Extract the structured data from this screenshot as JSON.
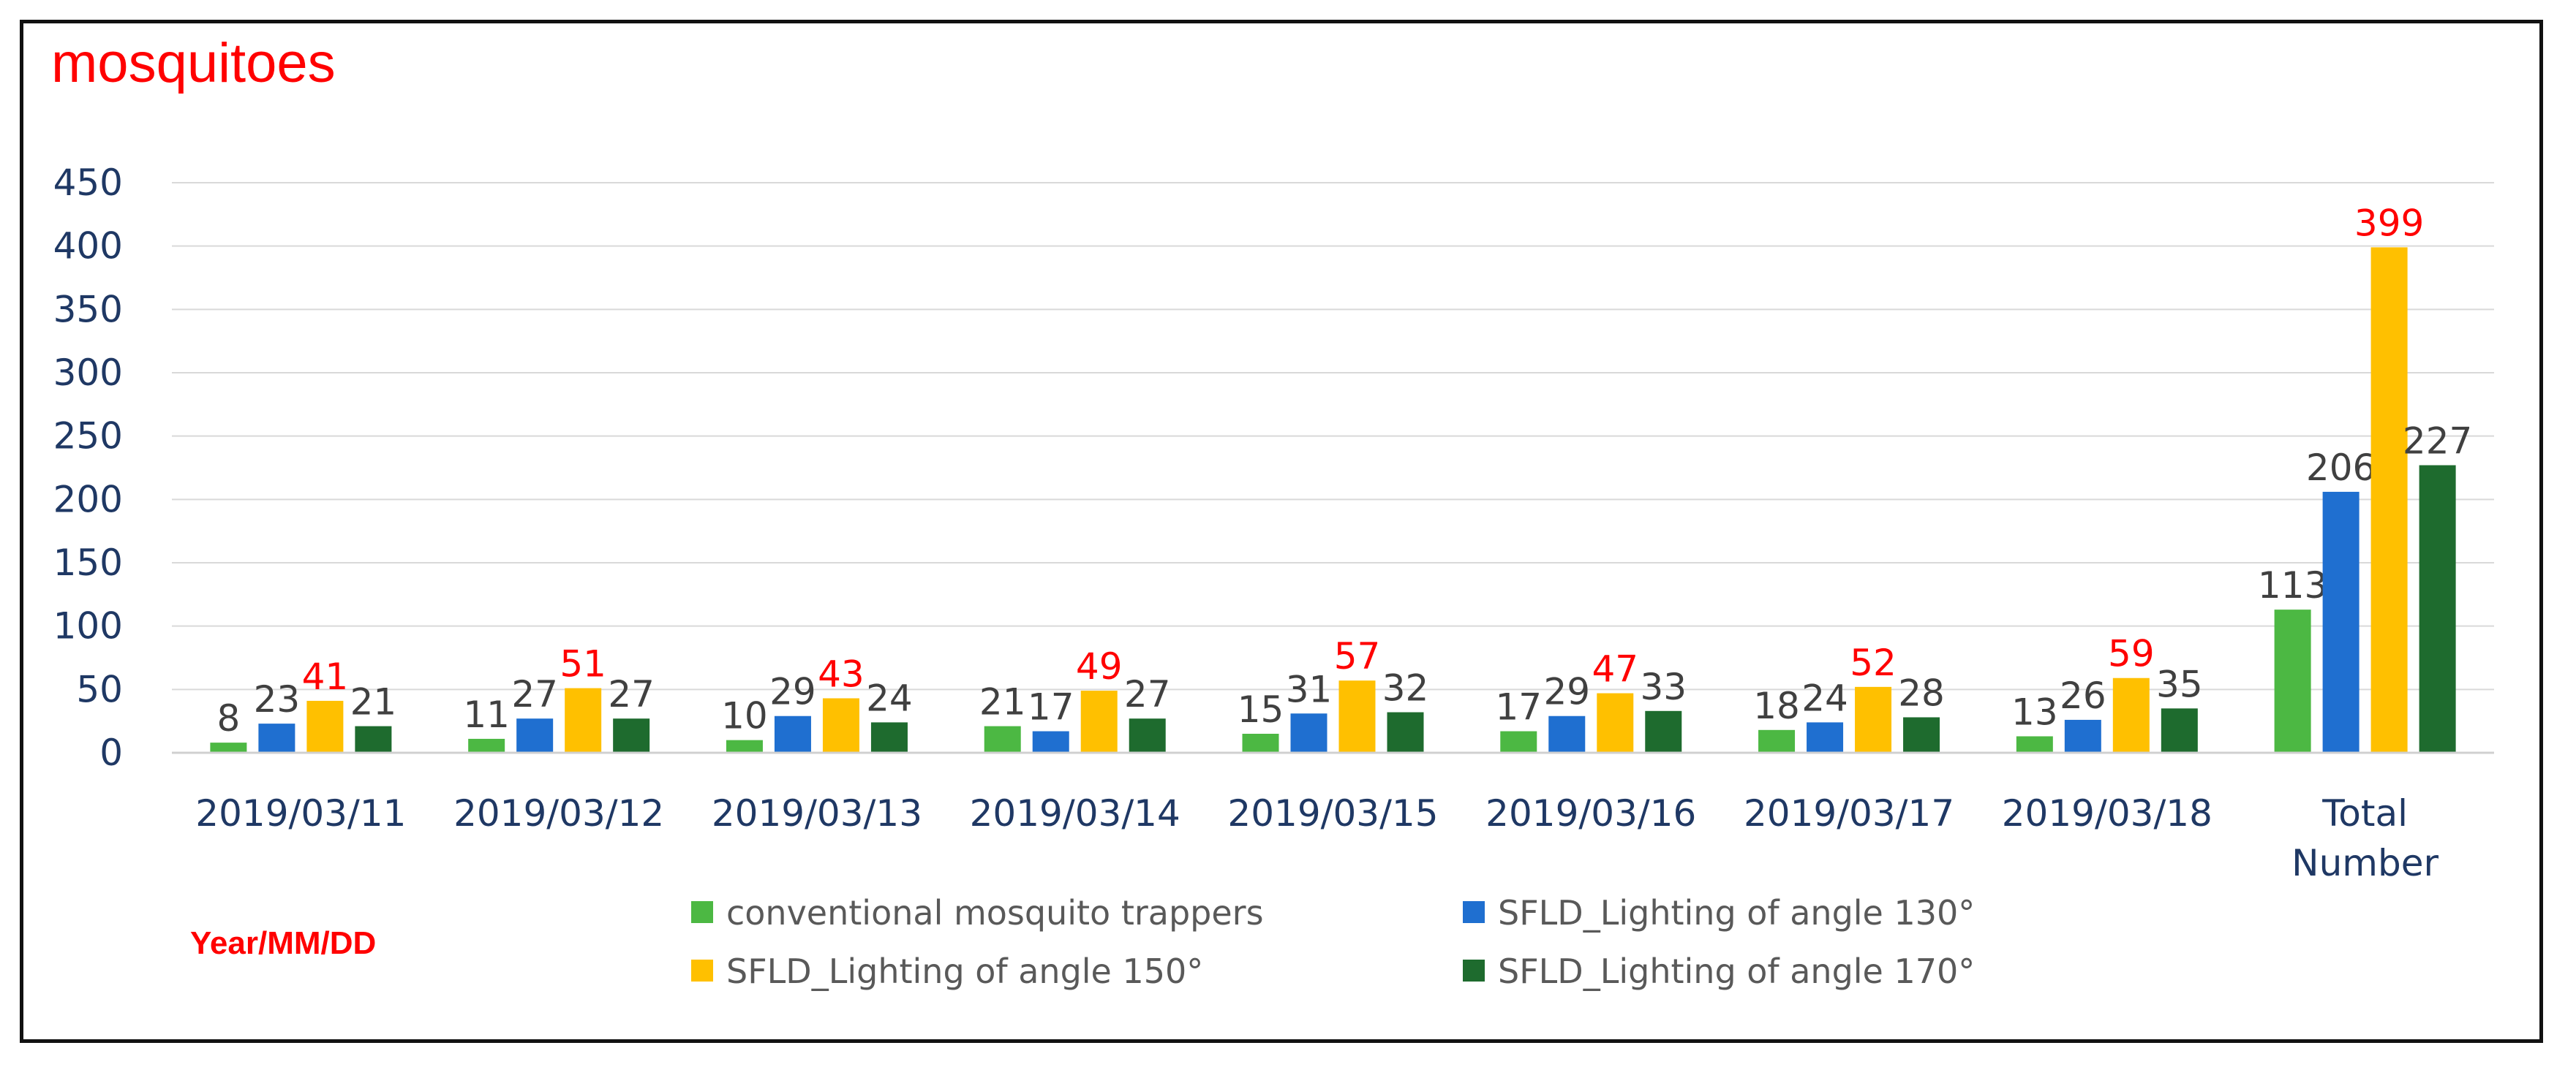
{
  "chart_data": {
    "type": "bar",
    "title": "mosquitoes",
    "xlabel": "Year/MM/DD",
    "ylabel": "",
    "ylim": [
      0,
      450
    ],
    "yticks": [
      0,
      50,
      100,
      150,
      200,
      250,
      300,
      350,
      400,
      450
    ],
    "grid": true,
    "legend_position": "bottom",
    "categories": [
      [
        "2019/03/11"
      ],
      [
        "2019/03/12"
      ],
      [
        "2019/03/13"
      ],
      [
        "2019/03/14"
      ],
      [
        "2019/03/15"
      ],
      [
        "2019/03/16"
      ],
      [
        "2019/03/17"
      ],
      [
        "2019/03/18"
      ],
      [
        "Total",
        "Number"
      ]
    ],
    "series": [
      {
        "name": "conventional mosquito trappers",
        "color": "#4cb843",
        "label_color": "#404040",
        "values": [
          8,
          11,
          10,
          21,
          15,
          17,
          18,
          13,
          113
        ]
      },
      {
        "name": "SFLD_Lighting of angle 130°",
        "color": "#1f6fd0",
        "label_color": "#404040",
        "values": [
          23,
          27,
          29,
          17,
          31,
          29,
          24,
          26,
          206
        ]
      },
      {
        "name": "SFLD_Lighting of angle 150°",
        "color": "#ffc000",
        "label_color": "#ff0000",
        "values": [
          41,
          51,
          43,
          49,
          57,
          47,
          52,
          59,
          399
        ]
      },
      {
        "name": "SFLD_Lighting of angle 170°",
        "color": "#1e6b2e",
        "label_color": "#404040",
        "values": [
          21,
          27,
          24,
          27,
          32,
          33,
          28,
          35,
          227
        ]
      }
    ]
  },
  "colors": {
    "title": "#ff0000",
    "xlabel": "#ff0000",
    "axis_text": "#1f3864",
    "gridline": "#d9d9d9"
  }
}
